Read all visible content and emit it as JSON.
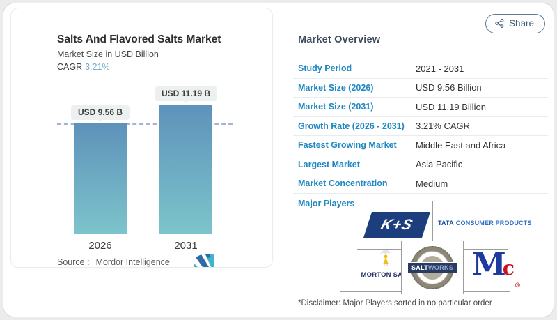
{
  "header": {
    "share_label": "Share"
  },
  "chart_panel": {
    "title": "Salts And Flavored Salts Market",
    "subtitle": "Market Size in USD Billion",
    "cagr_label": "CAGR",
    "cagr_value": "3.21%",
    "source_label": "Source :",
    "source_value": "Mordor Intelligence"
  },
  "chart_data": {
    "type": "bar",
    "categories": [
      "2026",
      "2031"
    ],
    "values": [
      9.56,
      11.19
    ],
    "bar_labels": [
      "USD 9.56 B",
      "USD 11.19 B"
    ],
    "title": "Salts And Flavored Salts Market",
    "ylabel": "Market Size in USD Billion",
    "unit": "USD Billion",
    "ylim": [
      0,
      11.19
    ],
    "grid": false,
    "annotations": {
      "dashed_reference_line_at": 9.56
    },
    "colors": {
      "bar_gradient_top": "#5e92ba",
      "bar_gradient_bottom": "#7cc4cb",
      "dashed_line": "#a7b2da",
      "label_pill_bg": "#edf0f0"
    }
  },
  "overview": {
    "heading": "Market Overview",
    "accent_color": "#1f88c1",
    "rows": [
      {
        "label": "Study Period",
        "value": "2021 - 2031"
      },
      {
        "label": "Market Size (2026)",
        "value": "USD 9.56 Billion"
      },
      {
        "label": "Market Size (2031)",
        "value": "USD 11.19 Billion"
      },
      {
        "label": "Growth Rate (2026 - 2031)",
        "value": "3.21% CAGR"
      },
      {
        "label": "Fastest Growing Market",
        "value": "Middle East and Africa"
      },
      {
        "label": "Largest Market",
        "value": "Asia Pacific"
      },
      {
        "label": "Market Concentration",
        "value": "Medium"
      }
    ],
    "major_players_label": "Major Players",
    "players": [
      {
        "name": "K+S",
        "text": "K+S"
      },
      {
        "name": "Tata Consumer Products",
        "text_primary": "TATA",
        "text_secondary": "CONSUMER PRODUCTS"
      },
      {
        "name": "Morton Salt",
        "text": "MORTON SALT"
      },
      {
        "name": "SaltWorks",
        "text_primary": "SALT",
        "text_secondary": "WORKS"
      },
      {
        "name": "McCormick",
        "text_primary": "M",
        "text_secondary": "c",
        "registered_mark": "®"
      }
    ],
    "disclaimer": "*Disclaimer: Major Players sorted in no particular order"
  }
}
